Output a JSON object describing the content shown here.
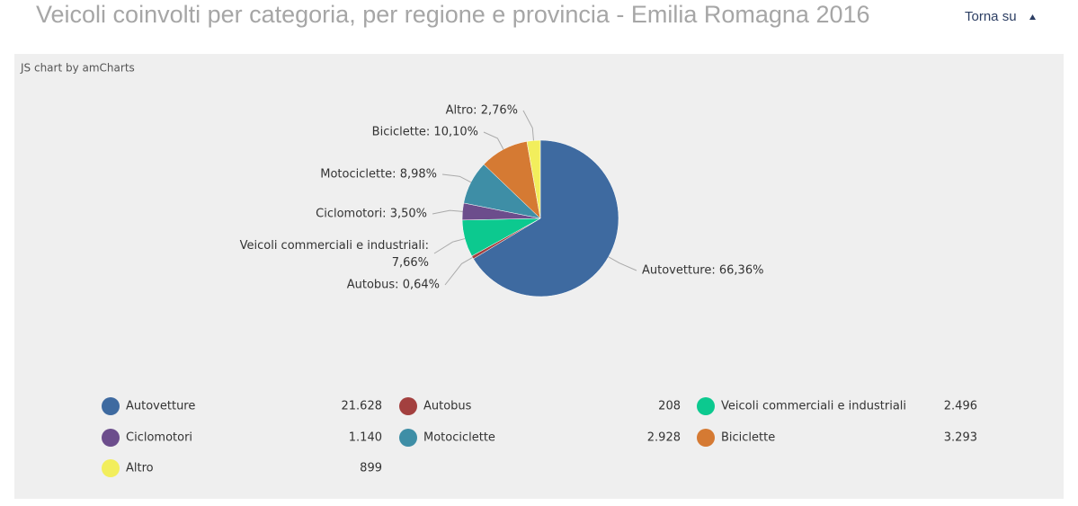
{
  "page_title": "Veicoli coinvolti per categoria, per regione e provincia - Emilia Romagna 2016",
  "nav_link": "Torna su",
  "credit": "JS chart by amCharts",
  "chart_data": {
    "type": "pie",
    "categories": [
      "Autovetture",
      "Autobus",
      "Veicoli commerciali e industriali",
      "Ciclomotori",
      "Motociclette",
      "Biciclette",
      "Altro"
    ],
    "values": [
      21628,
      208,
      2496,
      1140,
      2928,
      3293,
      899
    ],
    "value_labels": [
      "21.628",
      "208",
      "2.496",
      "1.140",
      "2.928",
      "3.293",
      "899"
    ],
    "slice_labels": [
      "Autovetture: 66,36%",
      "Autobus: 0,64%",
      "Veicoli commerciali e industriali:\n7,66%",
      "Ciclomotori: 3,50%",
      "Motociclette: 8,98%",
      "Biciclette: 10,10%",
      "Altro: 2,76%"
    ],
    "colors": [
      "#3e6aa0",
      "#a3403f",
      "#0cc98f",
      "#6c4d8c",
      "#3e8ea6",
      "#d57a33",
      "#f2ee5c"
    ]
  }
}
